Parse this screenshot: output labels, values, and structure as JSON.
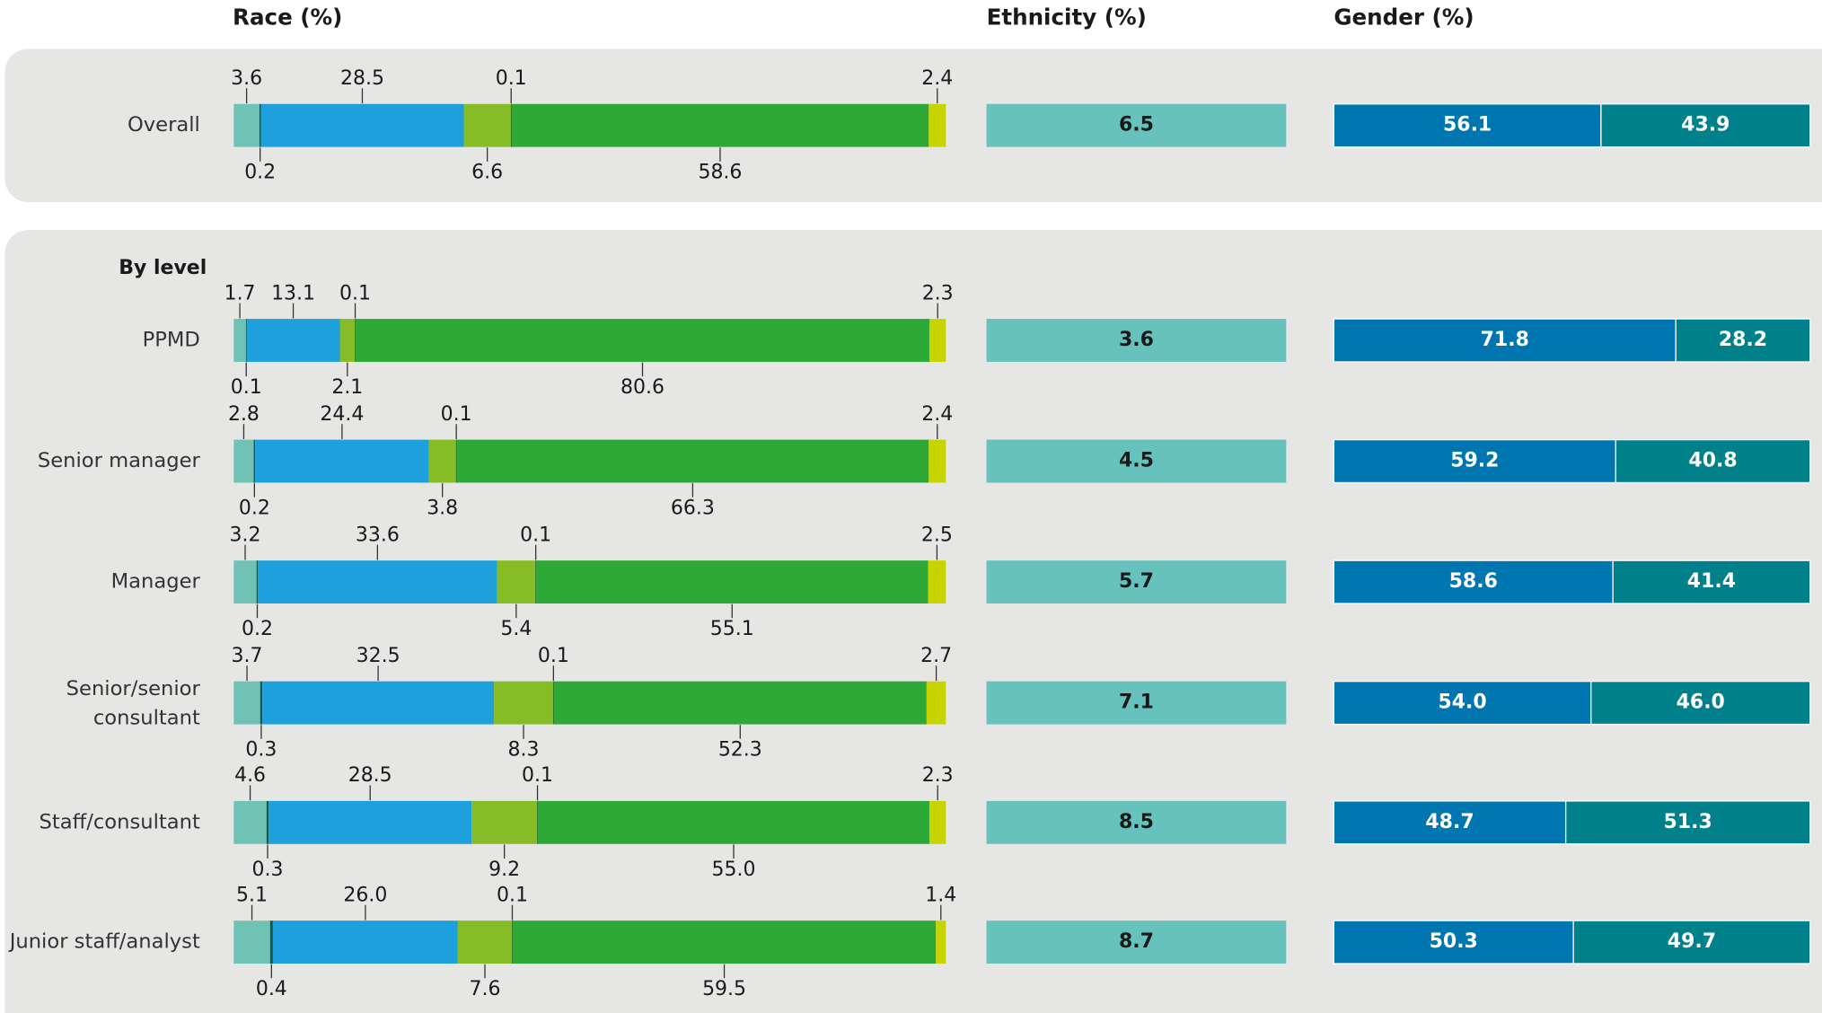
{
  "chart_data": {
    "type": "stacked-bar-panel",
    "headers": {
      "race": "Race (%)",
      "ethnicity": "Ethnicity (%)",
      "gender": "Gender (%)"
    },
    "section_label": "By level",
    "race_colors": [
      "#6fc2b4",
      "#0d5c4f",
      "#1ea0dc",
      "#86bc25",
      "#1f6b22",
      "#2ea836",
      "#c8d400"
    ],
    "ethnicity_color": "#67c1bd",
    "gender_colors": [
      "#0076b0",
      "#00808a"
    ],
    "rows": [
      {
        "label": "Overall",
        "race": [
          3.6,
          0.2,
          28.5,
          6.6,
          0.1,
          58.6,
          2.4
        ],
        "ethnicity": 6.5,
        "gender": [
          56.1,
          43.9
        ]
      },
      {
        "label": "PPMD",
        "race": [
          1.7,
          0.1,
          13.1,
          2.1,
          0.1,
          80.6,
          2.3
        ],
        "ethnicity": 3.6,
        "gender": [
          71.8,
          28.2
        ]
      },
      {
        "label": "Senior manager",
        "race": [
          2.8,
          0.2,
          24.4,
          3.8,
          0.1,
          66.3,
          2.4
        ],
        "ethnicity": 4.5,
        "gender": [
          59.2,
          40.8
        ]
      },
      {
        "label": "Manager",
        "race": [
          3.2,
          0.2,
          33.6,
          5.4,
          0.1,
          55.1,
          2.5
        ],
        "ethnicity": 5.7,
        "gender": [
          58.6,
          41.4
        ]
      },
      {
        "label": "Senior/senior consultant",
        "race": [
          3.7,
          0.3,
          32.5,
          8.3,
          0.1,
          52.3,
          2.7
        ],
        "ethnicity": 7.1,
        "gender": [
          54,
          46
        ],
        "gender_value_labels": [
          "54.0",
          "46.0"
        ]
      },
      {
        "label": "Staff/consultant",
        "race": [
          4.6,
          0.3,
          28.5,
          9.2,
          0.1,
          55,
          2.3
        ],
        "race_value_labels": [
          "4.6",
          "0.3",
          "28.5",
          "9.2",
          "0.1",
          "55.0",
          "2.3"
        ],
        "ethnicity": 8.5,
        "gender": [
          48.7,
          51.3
        ]
      },
      {
        "label": "Junior staff/analyst",
        "race": [
          5.1,
          0.4,
          26,
          7.6,
          0.1,
          59.5,
          1.4
        ],
        "race_value_labels": [
          "5.1",
          "0.4",
          "26.0",
          "7.6",
          "0.1",
          "59.5",
          "1.4"
        ],
        "ethnicity": 8.7,
        "gender": [
          50.3,
          49.7
        ]
      }
    ]
  }
}
